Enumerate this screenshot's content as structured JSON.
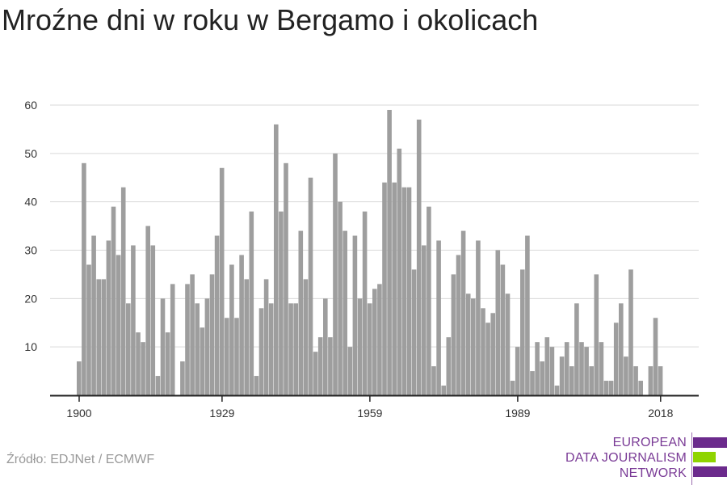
{
  "title": "Mroźne dni w roku w Bergamo i okolicach",
  "source": "Źródło: EDJNet / ECMWF",
  "logo": {
    "lines": [
      "EUROPEAN",
      "DATA JOURNALISM",
      "NETWORK"
    ],
    "colors": {
      "purple": "#6b2a8c",
      "green": "#8fd400",
      "text": "#7a3b96"
    }
  },
  "colors": {
    "bar": "#9e9e9e",
    "grid": "#d9d9d9",
    "axis": "#222222"
  },
  "chart_data": {
    "type": "bar",
    "title": "Mroźne dni w roku w Bergamo i okolicach",
    "xlabel": "",
    "ylabel": "",
    "x_tick_labels": [
      "1900",
      "1929",
      "1959",
      "1989",
      "2018"
    ],
    "y_ticks": [
      10,
      20,
      30,
      40,
      50,
      60
    ],
    "ylim": [
      0,
      60
    ],
    "grid": true,
    "start_year": 1900,
    "end_year": 2021,
    "values": [
      7,
      48,
      27,
      33,
      24,
      24,
      32,
      39,
      29,
      43,
      19,
      31,
      13,
      11,
      35,
      31,
      4,
      20,
      13,
      23,
      0,
      7,
      23,
      25,
      19,
      14,
      20,
      25,
      33,
      47,
      16,
      27,
      16,
      29,
      24,
      38,
      4,
      18,
      24,
      19,
      56,
      38,
      48,
      19,
      19,
      34,
      24,
      45,
      9,
      12,
      20,
      12,
      50,
      40,
      34,
      10,
      33,
      20,
      38,
      19,
      22,
      23,
      44,
      59,
      44,
      51,
      43,
      43,
      26,
      57,
      31,
      39,
      6,
      32,
      2,
      12,
      25,
      29,
      34,
      21,
      20,
      32,
      18,
      15,
      17,
      30,
      27,
      21,
      3,
      10,
      26,
      33,
      5,
      11,
      7,
      12,
      10,
      2,
      8,
      11,
      6,
      19,
      11,
      10,
      6,
      25,
      11,
      3,
      3,
      15,
      19,
      8,
      26,
      6,
      3,
      0,
      6,
      16,
      6,
      0,
      0,
      0
    ]
  }
}
